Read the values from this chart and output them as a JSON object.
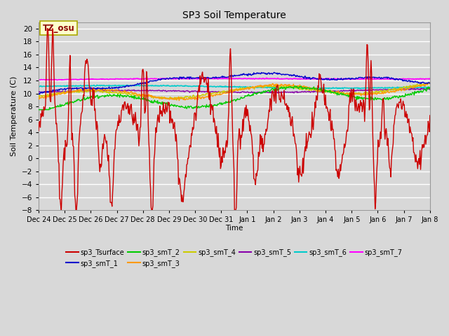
{
  "title": "SP3 Soil Temperature",
  "ylabel": "Soil Temperature (C)",
  "xlabel": "Time",
  "annotation": "TZ_osu",
  "ylim": [
    -8,
    21
  ],
  "yticks": [
    -8,
    -6,
    -4,
    -2,
    0,
    2,
    4,
    6,
    8,
    10,
    12,
    14,
    16,
    18,
    20
  ],
  "x_labels": [
    "Dec 24",
    "Dec 25",
    "Dec 26",
    "Dec 27",
    "Dec 28",
    "Dec 29",
    "Dec 30",
    "Dec 31",
    "Jan 1",
    "Jan 2",
    "Jan 3",
    "Jan 4",
    "Jan 5",
    "Jan 6",
    "Jan 7",
    "Jan 8"
  ],
  "n_points": 672,
  "background_color": "#d8d8d8",
  "plot_bg_color": "#d8d8d8",
  "series_colors": {
    "sp3_Tsurface": "#cc0000",
    "sp3_smT_1": "#0000cc",
    "sp3_smT_2": "#00cc00",
    "sp3_smT_3": "#ff9900",
    "sp3_smT_4": "#cccc00",
    "sp3_smT_5": "#8800aa",
    "sp3_smT_6": "#00cccc",
    "sp3_smT_7": "#ff00ff"
  },
  "legend_entries": [
    "sp3_Tsurface",
    "sp3_smT_1",
    "sp3_smT_2",
    "sp3_smT_3",
    "sp3_smT_4",
    "sp3_smT_5",
    "sp3_smT_6",
    "sp3_smT_7"
  ]
}
